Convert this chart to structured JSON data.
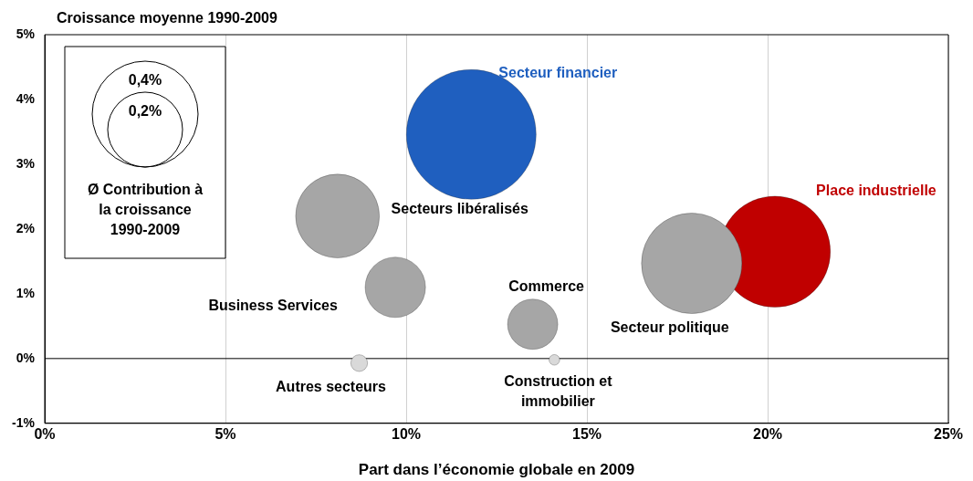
{
  "chart_data": {
    "type": "bubble",
    "ylabel": "Croissance moyenne 1990-2009",
    "xlabel": "Part dans l’économie globale en 2009",
    "legend_title": "Ø Contribution à la croissance 1990-2009",
    "size_legend": [
      {
        "value": 0.2,
        "label": "0,2%"
      },
      {
        "value": 0.4,
        "label": "0,4%"
      }
    ],
    "series": [
      {
        "name": "Secteur financier",
        "color": "#1f5fbf",
        "x": [
          11.8
        ],
        "values": [
          3.46
        ],
        "sizes": [
          0.6
        ]
      },
      {
        "name": "Secteurs libéralisés",
        "color": "#a6a6a6",
        "x": [
          8.1
        ],
        "values": [
          2.2
        ],
        "sizes": [
          0.25
        ]
      },
      {
        "name": "Business Services",
        "color": "#a6a6a6",
        "x": [
          9.7
        ],
        "values": [
          1.1
        ],
        "sizes": [
          0.13
        ]
      },
      {
        "name": "Commerce",
        "color": "#a6a6a6",
        "x": [
          13.5
        ],
        "values": [
          0.53
        ],
        "sizes": [
          0.09
        ]
      },
      {
        "name": "Secteur politique",
        "color": "#a6a6a6",
        "x": [
          17.9
        ],
        "values": [
          1.47
        ],
        "sizes": [
          0.36
        ]
      },
      {
        "name": "Place industrielle",
        "color": "#c00000",
        "x": [
          20.2
        ],
        "values": [
          1.65
        ],
        "sizes": [
          0.44
        ]
      },
      {
        "name": "Autres secteurs",
        "color": "#d9d9d9",
        "x": [
          8.7
        ],
        "values": [
          -0.07
        ],
        "sizes": [
          0.01
        ]
      },
      {
        "name": "Construction et immobilier",
        "color": "#d9d9d9",
        "x": [
          14.1
        ],
        "values": [
          -0.02
        ],
        "sizes": [
          0.004
        ]
      }
    ],
    "xlim": [
      0,
      25
    ],
    "ylim": [
      -1,
      5
    ],
    "xticks": [
      {
        "value": 0,
        "label": "0%"
      },
      {
        "value": 5,
        "label": "5%"
      },
      {
        "value": 10,
        "label": "10%"
      },
      {
        "value": 15,
        "label": "15%"
      },
      {
        "value": 20,
        "label": "20%"
      },
      {
        "value": 25,
        "label": "25%"
      }
    ],
    "yticks": [
      {
        "value": -1,
        "label": "-1%"
      },
      {
        "value": 0,
        "label": "0%"
      },
      {
        "value": 1,
        "label": "1%"
      },
      {
        "value": 2,
        "label": "2%"
      },
      {
        "value": 3,
        "label": "3%"
      },
      {
        "value": 4,
        "label": "4%"
      },
      {
        "value": 5,
        "label": "5%"
      }
    ],
    "grid": "x",
    "legend": false,
    "ref_lines": [
      {
        "axis": "y",
        "value": 0,
        "color": "#000000"
      }
    ]
  }
}
